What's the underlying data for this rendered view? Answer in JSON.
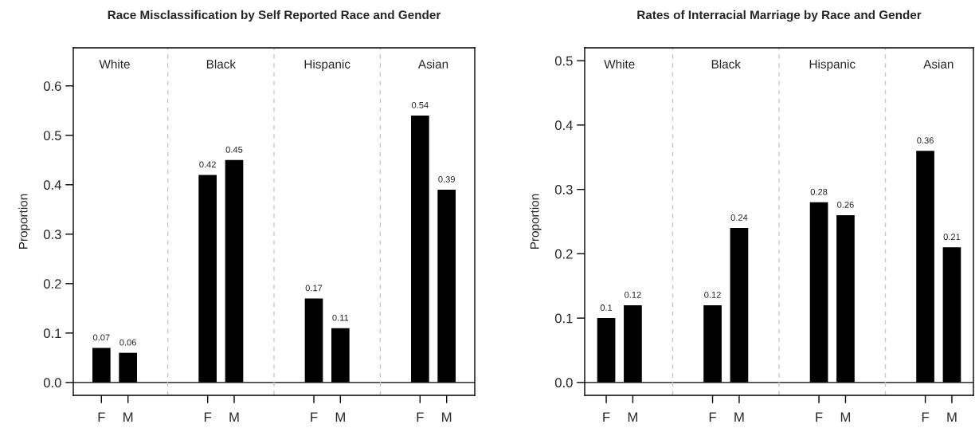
{
  "chart_data": [
    {
      "type": "bar",
      "title": "Race Misclassification by Self Reported Race and Gender",
      "ylabel": "Proportion",
      "categories": [
        "F",
        "M",
        null,
        null,
        "F",
        "M",
        null,
        null,
        "F",
        "M",
        null,
        null,
        "F",
        "M"
      ],
      "values": [
        0.07,
        0.06,
        null,
        null,
        0.42,
        0.45,
        null,
        null,
        0.17,
        0.11,
        null,
        null,
        0.54,
        0.39
      ],
      "color": "#000000",
      "ylim": [
        -0.026,
        0.677
      ],
      "yticks": [
        {
          "value": 0,
          "label": "0.0"
        },
        0.1,
        0.2,
        0.3,
        0.4,
        0.5,
        0.6
      ],
      "annotations": [
        "White",
        "Black",
        "Hispanic",
        "Asian"
      ],
      "ref_lines": [
        {
          "axis": "y",
          "value": 0,
          "color": "#000000",
          "line_style": "solid"
        }
      ],
      "data_labels": true
    },
    {
      "type": "bar",
      "title": "Rates of Interracial Marriage by Race and Gender",
      "ylabel": "Proportion",
      "categories": [
        "F",
        "M",
        null,
        null,
        "F",
        "M",
        null,
        null,
        "F",
        "M",
        null,
        null,
        "F",
        "M"
      ],
      "values": [
        0.1,
        0.12,
        null,
        null,
        0.12,
        0.24,
        null,
        null,
        0.28,
        0.26,
        null,
        null,
        0.36,
        0.21
      ],
      "color": "#000000",
      "ylim": [
        -0.02,
        0.52
      ],
      "yticks": [
        {
          "value": 0,
          "label": "0.0"
        },
        0.1,
        0.2,
        0.3,
        0.4,
        0.5
      ],
      "annotations": [
        "White",
        "Black",
        "Hispanic",
        "Asian"
      ],
      "ref_lines": [
        {
          "axis": "y",
          "value": 0,
          "color": "#000000",
          "line_style": "solid"
        }
      ],
      "data_labels": true
    }
  ]
}
